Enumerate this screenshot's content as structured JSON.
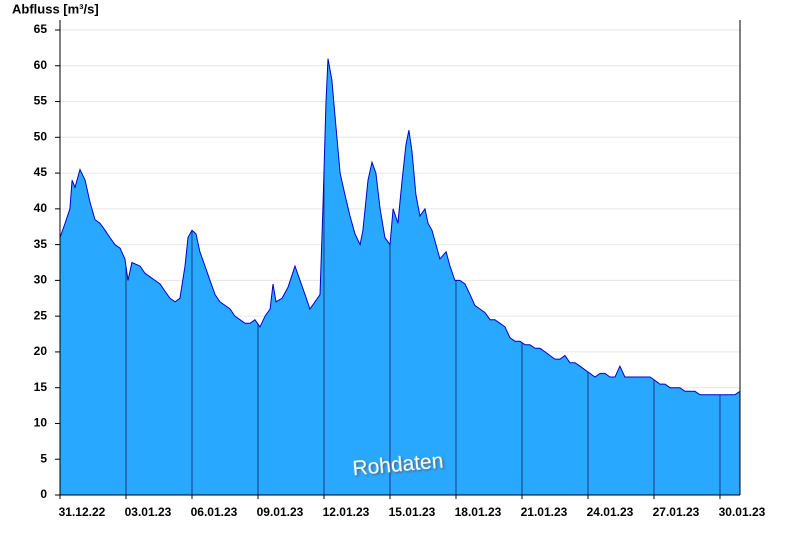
{
  "chart_data": {
    "type": "area",
    "y_label": "Abfluss [m³/s]",
    "annotation": "Rohdaten",
    "series": [
      {
        "color": "#29a8ff",
        "line_color": "#0000cc",
        "x": [
          0,
          0.23,
          0.45,
          0.55,
          0.68,
          0.91,
          1.14,
          1.36,
          1.59,
          1.82,
          2.05,
          2.27,
          2.5,
          2.73,
          2.95,
          3.09,
          3.27,
          3.64,
          3.86,
          4.09,
          4.32,
          4.55,
          4.77,
          5,
          5.23,
          5.45,
          5.68,
          5.82,
          6,
          6.18,
          6.36,
          6.59,
          6.82,
          7.05,
          7.27,
          7.5,
          7.73,
          7.95,
          8.18,
          8.41,
          8.64,
          8.86,
          9.09,
          9.32,
          9.55,
          9.68,
          9.82,
          10.09,
          10.36,
          10.68,
          10.91,
          11.14,
          11.36,
          11.59,
          11.82,
          11.95,
          12.09,
          12.18,
          12.36,
          12.5,
          12.73,
          12.95,
          13.18,
          13.41,
          13.64,
          13.77,
          14,
          14.18,
          14.36,
          14.55,
          14.77,
          15,
          15.14,
          15.36,
          15.55,
          15.73,
          15.86,
          16,
          16.18,
          16.36,
          16.59,
          16.73,
          16.91,
          17.09,
          17.27,
          17.55,
          17.73,
          17.95,
          18.18,
          18.41,
          18.64,
          18.86,
          19.09,
          19.32,
          19.55,
          19.77,
          20,
          20.23,
          20.45,
          20.68,
          20.91,
          21.14,
          21.36,
          21.59,
          21.82,
          22.05,
          22.27,
          22.5,
          22.73,
          22.95,
          23.18,
          23.41,
          23.64,
          23.86,
          24.09,
          24.32,
          24.55,
          24.77,
          25,
          25.23,
          25.45,
          25.68,
          25.91,
          26.14,
          26.36,
          26.59,
          26.82,
          27.05,
          27.27,
          27.5,
          27.73,
          27.95,
          28.18,
          28.41,
          28.64,
          28.86,
          29.09,
          29.32,
          29.55,
          29.77,
          30,
          30.23,
          30.45,
          30.68,
          30.91
        ],
        "values": [
          36,
          38,
          40,
          44,
          43,
          45.5,
          44,
          41,
          38.5,
          38,
          37,
          36,
          35,
          34.5,
          33,
          30,
          32.5,
          32,
          31,
          30.5,
          30,
          29.5,
          28.5,
          27.5,
          27,
          27.5,
          32,
          36,
          37,
          36.5,
          34,
          32,
          30,
          28,
          27,
          26.5,
          26,
          25,
          24.5,
          24,
          24,
          24.5,
          23.5,
          25,
          26,
          29.5,
          27,
          27.5,
          29,
          32,
          30,
          28,
          26,
          27,
          28,
          40,
          55,
          61,
          58,
          53,
          45,
          42,
          39,
          36.5,
          35,
          37,
          44,
          46.5,
          45,
          40,
          36,
          35,
          40,
          38,
          44,
          49,
          51,
          48,
          42,
          39,
          40,
          38,
          37,
          35,
          33,
          34,
          32,
          30,
          30,
          29.5,
          28,
          26.5,
          26,
          25.5,
          24.5,
          24.5,
          24,
          23.5,
          22,
          21.5,
          21.5,
          21,
          21,
          20.5,
          20.5,
          20,
          19.5,
          19,
          19,
          19.5,
          18.5,
          18.5,
          18,
          17.5,
          17,
          16.5,
          17,
          17,
          16.5,
          16.5,
          18,
          16.5,
          16.5,
          16.5,
          16.5,
          16.5,
          16.5,
          16,
          15.5,
          15.5,
          15,
          15,
          15,
          14.5,
          14.5,
          14.5,
          14,
          14,
          14,
          14,
          14,
          14,
          14,
          14,
          14.5
        ]
      }
    ],
    "xlim": [
      0,
      30.91
    ],
    "xticks": [
      {
        "value": 0,
        "label": "31.12.22"
      },
      {
        "value": 3,
        "label": "03.01.23"
      },
      {
        "value": 6,
        "label": "06.01.23"
      },
      {
        "value": 9,
        "label": "09.01.23"
      },
      {
        "value": 12,
        "label": "12.01.23"
      },
      {
        "value": 15,
        "label": "15.01.23"
      },
      {
        "value": 18,
        "label": "18.01.23"
      },
      {
        "value": 21,
        "label": "21.01.23"
      },
      {
        "value": 24,
        "label": "24.01.23"
      },
      {
        "value": 27,
        "label": "27.01.23"
      },
      {
        "value": 30,
        "label": "30.01.23"
      }
    ],
    "ylim": [
      0,
      65
    ],
    "yticks": [
      0,
      5,
      10,
      15,
      20,
      25,
      30,
      35,
      40,
      45,
      50,
      55,
      60,
      65
    ],
    "grid": true
  }
}
